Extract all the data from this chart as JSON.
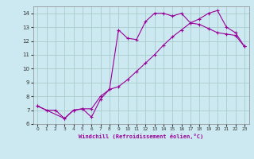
{
  "xlabel": "Windchill (Refroidissement éolien,°C)",
  "background_color": "#cce8f0",
  "grid_color": "#aacccc",
  "line_color": "#990099",
  "xlim": [
    -0.5,
    23.5
  ],
  "ylim": [
    6,
    14.5
  ],
  "xticks": [
    0,
    1,
    2,
    3,
    4,
    5,
    6,
    7,
    8,
    9,
    10,
    11,
    12,
    13,
    14,
    15,
    16,
    17,
    18,
    19,
    20,
    21,
    22,
    23
  ],
  "yticks": [
    6,
    7,
    8,
    9,
    10,
    11,
    12,
    13,
    14
  ],
  "curve1_x": [
    0,
    1,
    2,
    3,
    4,
    5,
    6,
    7,
    8,
    9,
    10,
    11,
    12,
    13,
    14,
    15,
    16,
    17,
    18,
    19,
    20,
    21,
    22,
    23
  ],
  "curve1_y": [
    7.3,
    7.0,
    7.0,
    6.4,
    7.0,
    7.1,
    6.5,
    7.8,
    8.5,
    12.8,
    12.2,
    12.1,
    13.4,
    14.0,
    14.0,
    13.8,
    14.0,
    13.3,
    13.2,
    12.9,
    12.6,
    12.5,
    12.4,
    11.6
  ],
  "curve2_x": [
    0,
    3,
    4,
    5,
    6,
    7,
    8,
    9,
    10,
    11,
    12,
    13,
    14,
    15,
    16,
    17,
    18,
    19,
    20,
    21,
    22,
    23
  ],
  "curve2_y": [
    7.3,
    6.4,
    7.0,
    7.1,
    7.1,
    8.0,
    8.5,
    8.7,
    9.2,
    9.8,
    10.4,
    11.0,
    11.7,
    12.3,
    12.8,
    13.3,
    13.6,
    14.0,
    14.2,
    13.0,
    12.6,
    11.6
  ]
}
